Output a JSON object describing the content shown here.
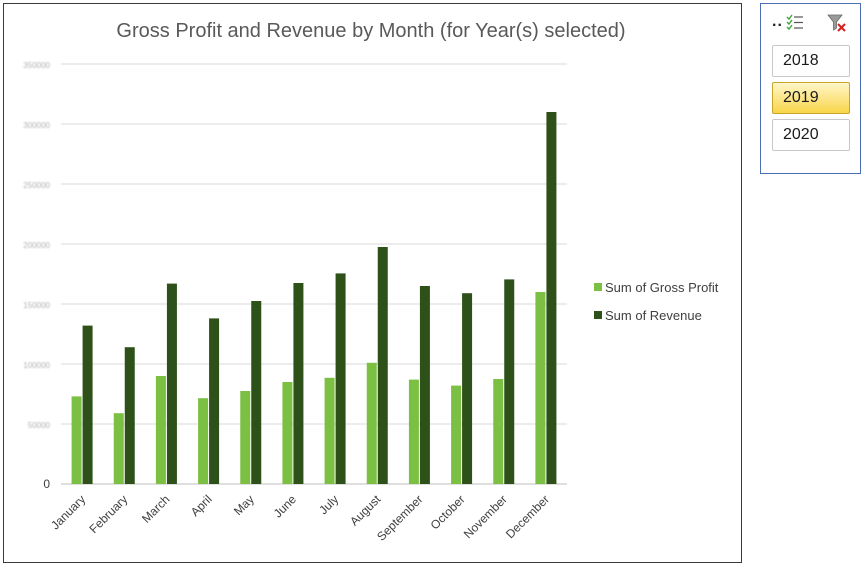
{
  "chart_data": {
    "type": "bar",
    "title": "Gross Profit and Revenue by Month (for Year(s) selected)",
    "categories": [
      "January",
      "February",
      "March",
      "April",
      "May",
      "June",
      "July",
      "August",
      "September",
      "October",
      "November",
      "December"
    ],
    "series": [
      {
        "name": "Sum of Gross Profit",
        "color": "#7bc043",
        "values": [
          73000,
          59000,
          90000,
          71500,
          77500,
          85000,
          88500,
          101000,
          87000,
          82000,
          87500,
          160000
        ]
      },
      {
        "name": "Sum of Revenue",
        "color": "#2d5119",
        "values": [
          132000,
          114000,
          167000,
          138000,
          152500,
          167500,
          175500,
          197500,
          165000,
          159000,
          170500,
          310000
        ]
      }
    ],
    "y_ticks": [
      "0",
      "50000",
      "100000",
      "150000",
      "200000",
      "250000",
      "300000",
      "350000"
    ],
    "ylim": [
      0,
      350000
    ],
    "grid": true,
    "legend_position": "right"
  },
  "slicer": {
    "items": [
      {
        "label": "2018",
        "selected": false
      },
      {
        "label": "2019",
        "selected": true
      },
      {
        "label": "2020",
        "selected": false
      }
    ],
    "header_icons": [
      "multi-select-icon",
      "clear-filter-icon"
    ]
  }
}
